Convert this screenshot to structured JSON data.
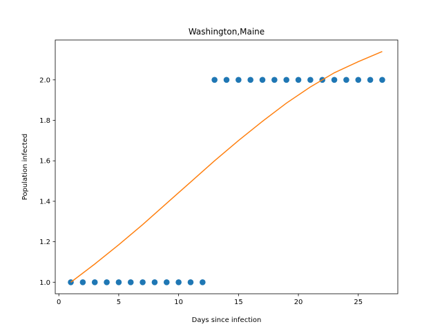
{
  "chart_data": {
    "type": "scatter",
    "title": "Washington,Maine",
    "xlabel": "Days since infection",
    "ylabel": "Population infected",
    "xlim": [
      -0.3,
      28.3
    ],
    "ylim": [
      0.943,
      2.197
    ],
    "xticks": [
      0,
      5,
      10,
      15,
      20,
      25
    ],
    "xtick_labels": [
      "0",
      "5",
      "10",
      "15",
      "20",
      "25"
    ],
    "yticks": [
      1.0,
      1.2,
      1.4,
      1.6,
      1.8,
      2.0
    ],
    "ytick_labels": [
      "1.0",
      "1.2",
      "1.4",
      "1.6",
      "1.8",
      "2.0"
    ],
    "grid": false,
    "series": [
      {
        "kind": "scatter",
        "color": "#1f77b4",
        "x": [
          1,
          2,
          3,
          4,
          5,
          6,
          7,
          8,
          9,
          10,
          11,
          12,
          13,
          14,
          15,
          16,
          17,
          18,
          19,
          20,
          21,
          22,
          23,
          24,
          25,
          26,
          27
        ],
        "y": [
          1,
          1,
          1,
          1,
          1,
          1,
          1,
          1,
          1,
          1,
          1,
          1,
          2,
          2,
          2,
          2,
          2,
          2,
          2,
          2,
          2,
          2,
          2,
          2,
          2,
          2,
          2
        ]
      },
      {
        "kind": "line",
        "color": "#ff7f0e",
        "x": [
          1,
          3,
          5,
          7,
          9,
          11,
          13,
          15,
          17,
          19,
          21,
          23,
          25,
          27
        ],
        "y": [
          1.0,
          1.09,
          1.185,
          1.285,
          1.39,
          1.495,
          1.6,
          1.7,
          1.795,
          1.885,
          1.965,
          2.035,
          2.09,
          2.14
        ]
      }
    ]
  }
}
